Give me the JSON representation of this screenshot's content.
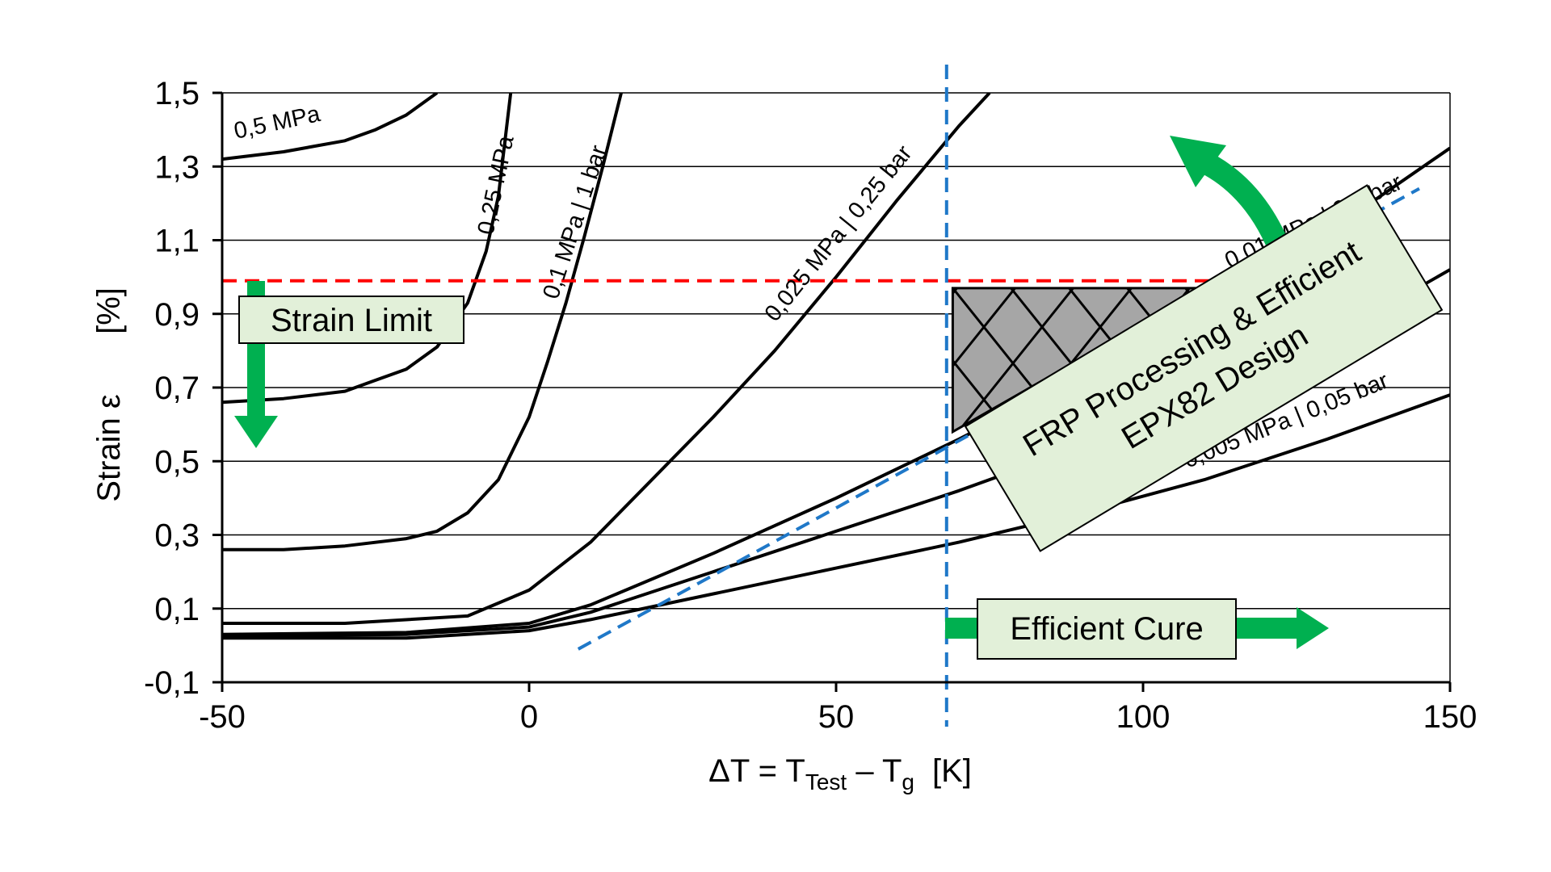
{
  "chart_data": {
    "type": "line",
    "x_axis": {
      "label_main": "ΔT = T",
      "label_sub1": "Test",
      "label_mid": " – T",
      "label_sub2": "g",
      "label_unit": "[K]",
      "range": [
        -50,
        150
      ],
      "ticks": [
        -50,
        0,
        50,
        100,
        150
      ],
      "tick_labels": [
        "-50",
        "0",
        "50",
        "100",
        "150"
      ]
    },
    "y_axis": {
      "label": "Strain ε",
      "unit": "[%]",
      "range": [
        -0.1,
        1.5
      ],
      "ticks": [
        -0.1,
        0.1,
        0.3,
        0.5,
        0.7,
        0.9,
        1.1,
        1.3,
        1.5
      ],
      "tick_labels": [
        "-0,1",
        "0,1",
        "0,3",
        "0,5",
        "0,7",
        "0,9",
        "1,1",
        "1,3",
        "1,5"
      ]
    },
    "grid": "horizontal",
    "series": [
      {
        "name": "0,5 MPa",
        "x": [
          -50,
          -40,
          -30,
          -25,
          -20,
          -15
        ],
        "y": [
          1.32,
          1.34,
          1.37,
          1.4,
          1.44,
          1.5
        ]
      },
      {
        "name": "0,25 MPa",
        "x": [
          -50,
          -40,
          -30,
          -25,
          -20,
          -15,
          -10,
          -7,
          -5,
          -3
        ],
        "y": [
          0.66,
          0.67,
          0.69,
          0.72,
          0.75,
          0.81,
          0.93,
          1.07,
          1.22,
          1.5
        ]
      },
      {
        "name": "0,1 MPa | 1 bar",
        "x": [
          -50,
          -40,
          -30,
          -20,
          -15,
          -10,
          -5,
          0,
          3,
          6,
          9,
          12,
          15
        ],
        "y": [
          0.26,
          0.26,
          0.27,
          0.29,
          0.31,
          0.36,
          0.45,
          0.62,
          0.77,
          0.93,
          1.11,
          1.3,
          1.5
        ]
      },
      {
        "name": "0,025 MPa | 0,25 bar",
        "x": [
          -50,
          -30,
          -10,
          0,
          10,
          20,
          30,
          40,
          50,
          60,
          70,
          75
        ],
        "y": [
          0.06,
          0.06,
          0.08,
          0.15,
          0.28,
          0.45,
          0.62,
          0.8,
          1.0,
          1.21,
          1.41,
          1.5
        ]
      },
      {
        "name": "0,01 MPa | 0,1 bar",
        "x": [
          -50,
          -20,
          0,
          10,
          30,
          50,
          70,
          90,
          110,
          130,
          150
        ],
        "y": [
          0.03,
          0.035,
          0.06,
          0.11,
          0.25,
          0.4,
          0.56,
          0.73,
          0.91,
          1.12,
          1.35
        ]
      },
      {
        "name": "",
        "x": [
          -50,
          -20,
          0,
          10,
          30,
          50,
          70,
          90,
          110,
          130,
          150
        ],
        "y": [
          0.025,
          0.03,
          0.05,
          0.09,
          0.2,
          0.31,
          0.42,
          0.54,
          0.67,
          0.83,
          1.02
        ]
      },
      {
        "name": "0,005 MPa | 0,05 bar",
        "x": [
          -50,
          -20,
          0,
          10,
          30,
          50,
          70,
          90,
          110,
          130,
          150
        ],
        "y": [
          0.02,
          0.02,
          0.04,
          0.07,
          0.14,
          0.21,
          0.28,
          0.36,
          0.45,
          0.56,
          0.68
        ]
      }
    ],
    "strain_limit": 0.99,
    "cure_threshold_x": 68,
    "design_trend": {
      "x": [
        8,
        145
      ],
      "y": [
        -0.01,
        1.24
      ]
    },
    "design_zone": {
      "x": [
        69,
        69,
        110,
        69
      ],
      "y": [
        0.58,
        0.97,
        0.97,
        0.58
      ]
    },
    "annotations": {
      "strain_limit": "Strain Limit",
      "efficient_cure": "Efficient Cure",
      "design_line1": "FRP Processing & Efficient",
      "design_line2": "EPX82 Design"
    },
    "colors": {
      "curve": "#000000",
      "grid": "#000000",
      "limit_line": "#ff0000",
      "cure_line": "#1f78c8",
      "arrow": "#00b050",
      "box_fill": "#e2f0d9",
      "zone_fill": "#a6a6a6"
    }
  }
}
